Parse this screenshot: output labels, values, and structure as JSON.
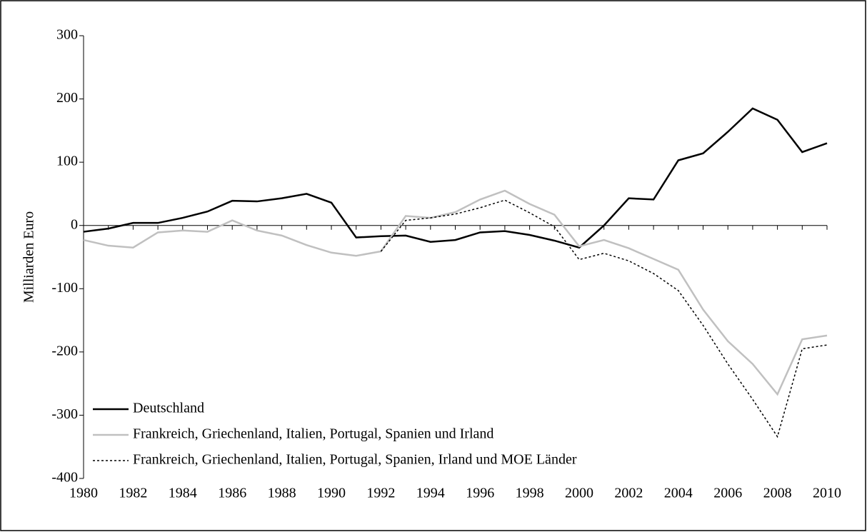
{
  "chart_data": {
    "type": "line",
    "y_label": "Milliarden Euro",
    "x": [
      1980,
      1981,
      1982,
      1983,
      1984,
      1985,
      1986,
      1987,
      1988,
      1989,
      1990,
      1991,
      1992,
      1993,
      1994,
      1995,
      1996,
      1997,
      1998,
      1999,
      2000,
      2001,
      2002,
      2003,
      2004,
      2005,
      2006,
      2007,
      2008,
      2009,
      2010
    ],
    "xlim": [
      1980,
      2010
    ],
    "xticks": [
      1980,
      1982,
      1984,
      1986,
      1988,
      1990,
      1992,
      1994,
      1996,
      1998,
      2000,
      2002,
      2004,
      2006,
      2008,
      2010
    ],
    "ylim": [
      -400,
      300
    ],
    "yticks": [
      -400,
      -300,
      -200,
      -100,
      0,
      100,
      200,
      300
    ],
    "legend": "lower-left",
    "series": [
      {
        "name": "Deutschland",
        "color": "#000000",
        "style": "solid",
        "values": [
          -10,
          -5,
          4,
          4,
          12,
          22,
          39,
          38,
          43,
          50,
          36,
          -19,
          -17,
          -16,
          -26,
          -23,
          -11,
          -9,
          -15,
          -24,
          -35,
          0,
          43,
          41,
          103,
          114,
          148,
          185,
          167,
          116,
          130
        ]
      },
      {
        "name": "Frankreich, Griechenland, Italien, Portugal, Spanien und Irland",
        "color": "#c0c0c0",
        "style": "solid",
        "values": [
          -23,
          -32,
          -35,
          -11,
          -8,
          -10,
          8,
          -8,
          -16,
          -31,
          -43,
          -48,
          -41,
          15,
          12,
          21,
          41,
          55,
          34,
          17,
          -33,
          -23,
          -36,
          -53,
          -70,
          -133,
          -183,
          -219,
          -267,
          -180,
          -174
        ]
      },
      {
        "name": "Frankreich, Griechenland, Italien, Portugal, Spanien, Irland und MOE Länder",
        "color": "#000000",
        "style": "dotted",
        "values": [
          null,
          null,
          null,
          null,
          null,
          null,
          null,
          null,
          null,
          null,
          null,
          null,
          -41,
          8,
          12,
          18,
          28,
          40,
          20,
          -2,
          -54,
          -44,
          -56,
          -76,
          -103,
          -158,
          -219,
          -275,
          -334,
          -195,
          -189
        ]
      }
    ]
  }
}
